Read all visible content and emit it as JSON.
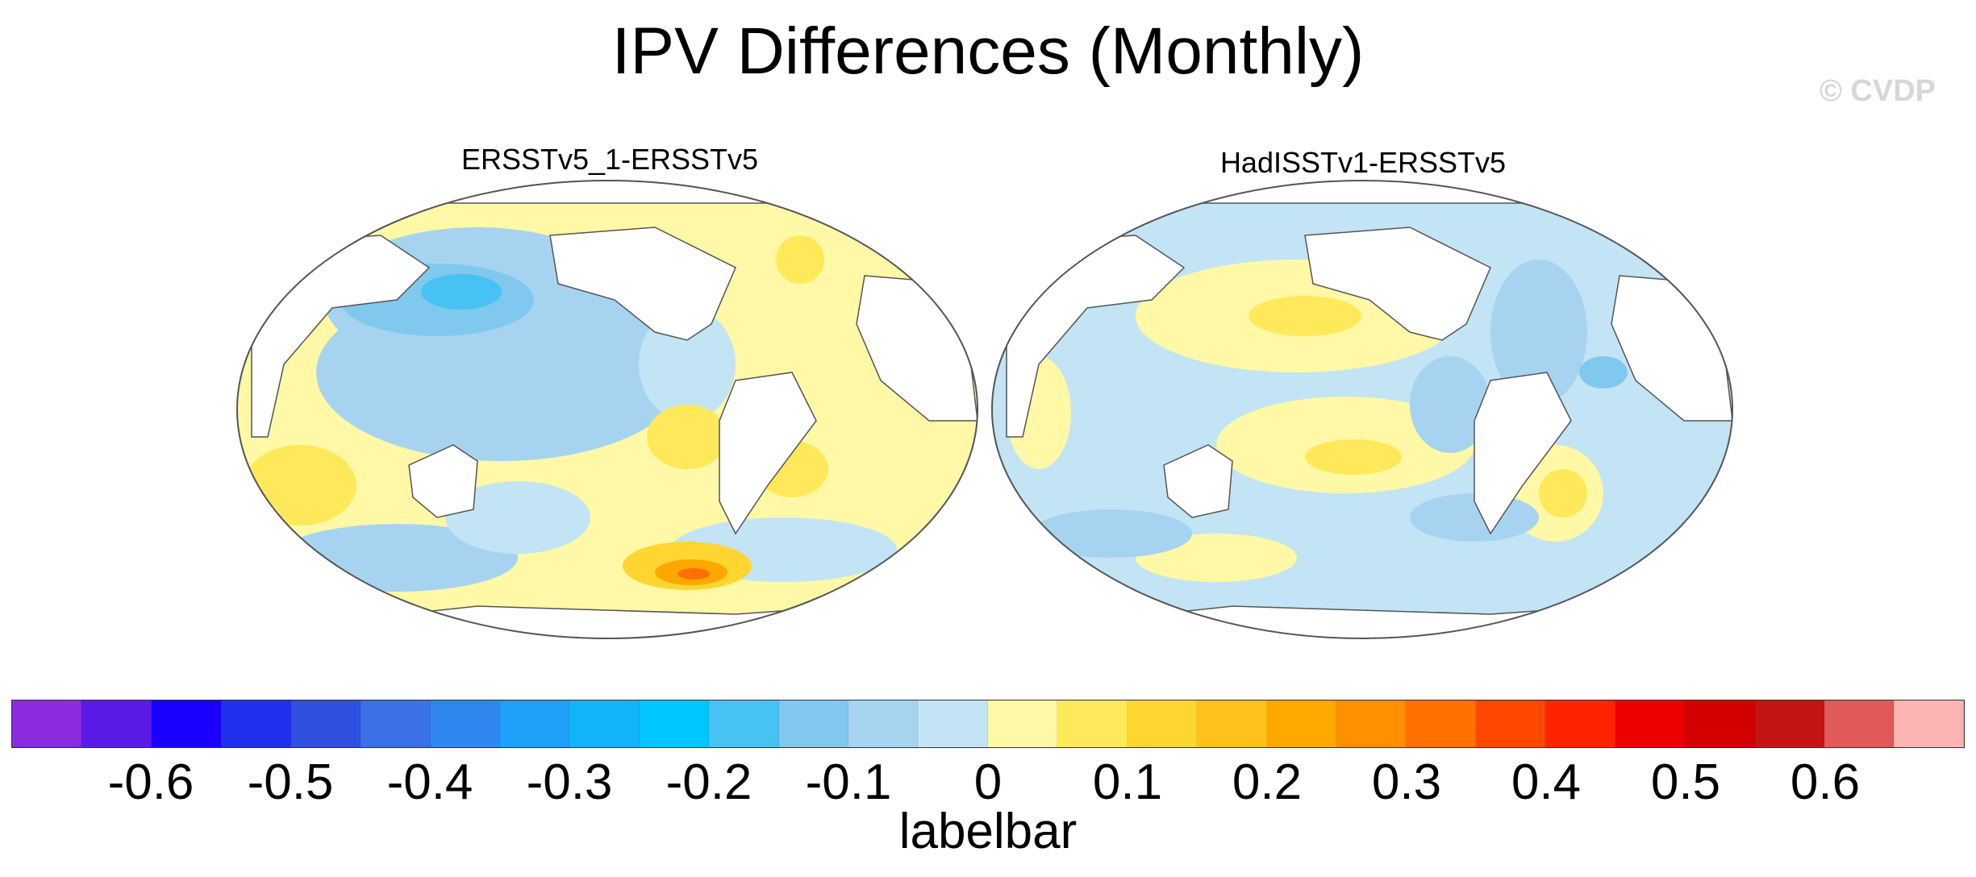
{
  "title": "IPV Differences (Monthly)",
  "watermark": "© CVDP",
  "panels": [
    {
      "title": "ERSSTv5_1-ERSSTv5"
    },
    {
      "title": "HadISSTv1-ERSSTv5"
    }
  ],
  "colorbar": {
    "label": "labelbar",
    "colors": [
      "#8a2be2",
      "#5a1ae8",
      "#1a00ff",
      "#2030ee",
      "#3050e0",
      "#3a70e8",
      "#2f88f0",
      "#1ea0f8",
      "#12b4f8",
      "#00c6ff",
      "#47c2f2",
      "#80c8ee",
      "#a6d4f0",
      "#c2e4f4",
      "#fff8a6",
      "#ffe95a",
      "#ffd631",
      "#ffc21a",
      "#ffa800",
      "#ff9000",
      "#ff7000",
      "#ff4800",
      "#ff2400",
      "#ee0000",
      "#d40000",
      "#c41414",
      "#e05a5a",
      "#ffb4b4"
    ],
    "tick_labels": [
      "-0.6",
      "-0.5",
      "-0.4",
      "-0.3",
      "-0.2",
      "-0.1",
      "0",
      "0.1",
      "0.2",
      "0.3",
      "0.4",
      "0.5",
      "0.6"
    ]
  }
}
